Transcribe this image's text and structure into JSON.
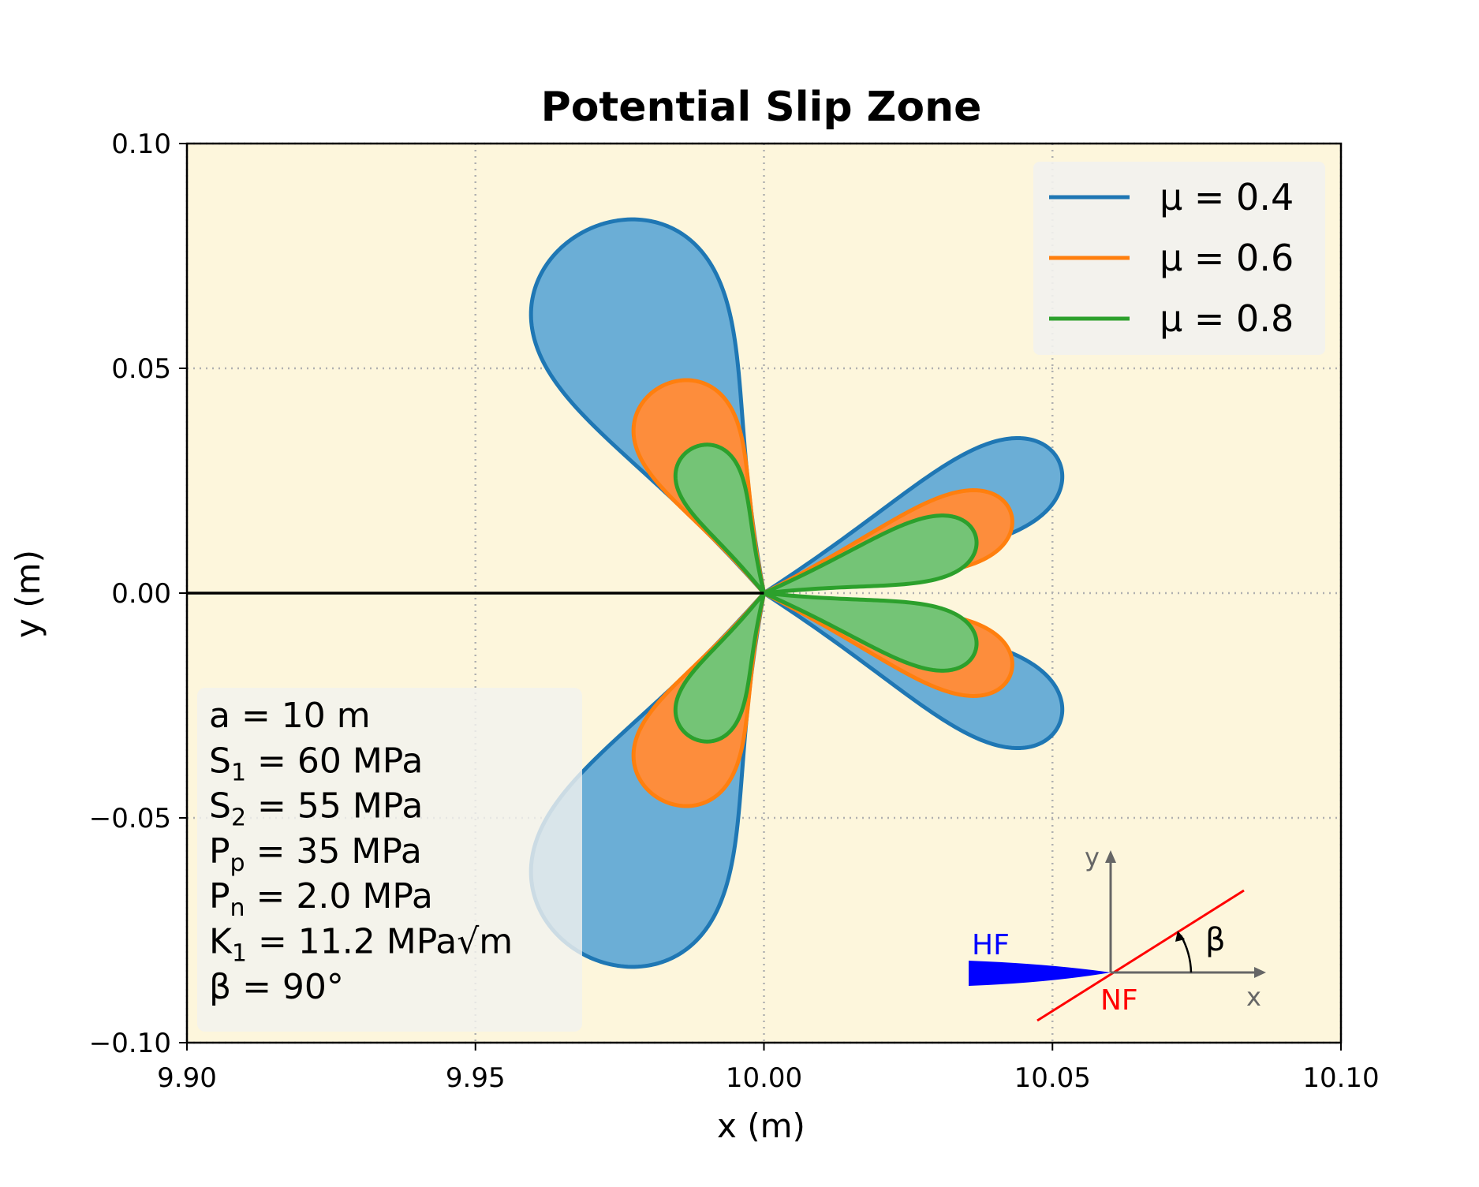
{
  "chart_data": {
    "type": "area",
    "title": "Potential Slip Zone",
    "xlabel": "x (m)",
    "ylabel": "y (m)",
    "xlim": [
      9.9,
      10.1
    ],
    "ylim": [
      -0.1,
      0.1
    ],
    "xticks": [
      9.9,
      9.95,
      10.0,
      10.05,
      10.1
    ],
    "yticks": [
      -0.1,
      -0.05,
      0.0,
      0.05,
      0.1
    ],
    "xtick_labels": [
      "9.90",
      "9.95",
      "10.00",
      "10.05",
      "10.10"
    ],
    "ytick_labels": [
      "−0.10",
      "−0.05",
      "0.00",
      "0.05",
      "0.10"
    ],
    "grid": true,
    "legend_position": "top-right",
    "plot_background": "#fdf6dc",
    "crack": {
      "x": [
        9.9,
        10.0
      ],
      "y": [
        0.0,
        0.0
      ],
      "color": "#000000"
    },
    "series": [
      {
        "name": "μ = 0.4",
        "color": "#1f77b4",
        "fill": "#6baed6",
        "lobes": [
          {
            "tip_angle_deg": 110,
            "r_max": 0.07,
            "width_deg": 29,
            "power": 0.7,
            "center_angle_deg": 116
          },
          {
            "tip_angle_deg": 25,
            "r_max": 0.056,
            "width_deg": 17,
            "power": 0.7,
            "center_angle_deg": 24
          }
        ]
      },
      {
        "name": "μ = 0.6",
        "color": "#ff7f0e",
        "fill": "#fd8d3c",
        "lobes": [
          {
            "tip_angle_deg": 108,
            "r_max": 0.04,
            "width_deg": 27,
            "power": 0.7,
            "center_angle_deg": 116
          },
          {
            "tip_angle_deg": 22,
            "r_max": 0.045,
            "width_deg": 17,
            "power": 0.7,
            "center_angle_deg": 18
          }
        ]
      },
      {
        "name": "μ = 0.8",
        "color": "#2ca02c",
        "fill": "#74c476",
        "lobes": [
          {
            "tip_angle_deg": 106,
            "r_max": 0.028,
            "width_deg": 24,
            "power": 0.7,
            "center_angle_deg": 116
          },
          {
            "tip_angle_deg": 18,
            "r_max": 0.038,
            "width_deg": 17,
            "power": 0.7,
            "center_angle_deg": 15
          }
        ]
      }
    ],
    "annotation_box": [
      {
        "main": "a   = 10 m"
      },
      {
        "main": "S",
        "sub": "1",
        "rest": " = 60 MPa"
      },
      {
        "main": "S",
        "sub": "2",
        "rest": " = 55 MPa"
      },
      {
        "main": "P",
        "sub": "p",
        "rest": " = 35 MPa"
      },
      {
        "main": "P",
        "sub": "n",
        "rest": " = 2.0 MPa"
      },
      {
        "main": "K",
        "sub": "1",
        "rest": " = 11.2 MPa√m"
      },
      {
        "main": "β  = 90°"
      }
    ],
    "inset": {
      "hf_label": "HF",
      "nf_label": "NF",
      "beta_label": "β",
      "x_label": "x",
      "y_label": "y",
      "hf_color": "#0000ff",
      "nf_color": "#ff0000",
      "axis_color": "#666666"
    }
  }
}
